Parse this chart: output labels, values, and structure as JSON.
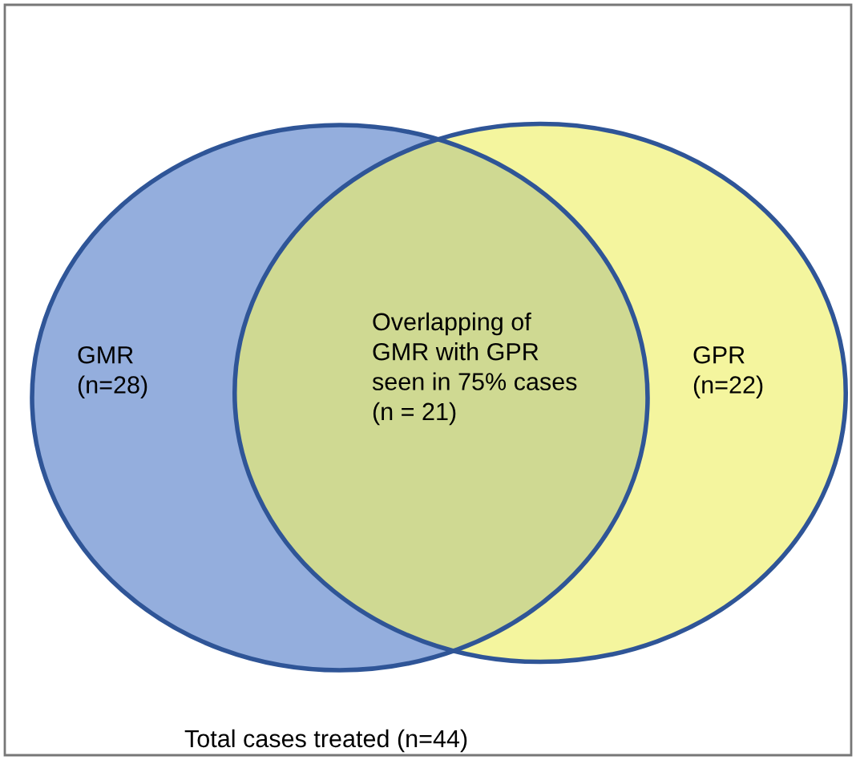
{
  "chart_data": {
    "type": "other",
    "categories": [
      "GMR",
      "GPR"
    ],
    "values": [
      28,
      22
    ],
    "value_labels": [
      "(n=28)",
      "(n=22)"
    ],
    "colors": [
      "#8eaadb",
      "#eef06a"
    ],
    "annotations": [
      "Overlapping of\nGMR with GPR\nseen in 75% cases\n(n = 21)",
      "Total cases treated (n=44)"
    ]
  }
}
